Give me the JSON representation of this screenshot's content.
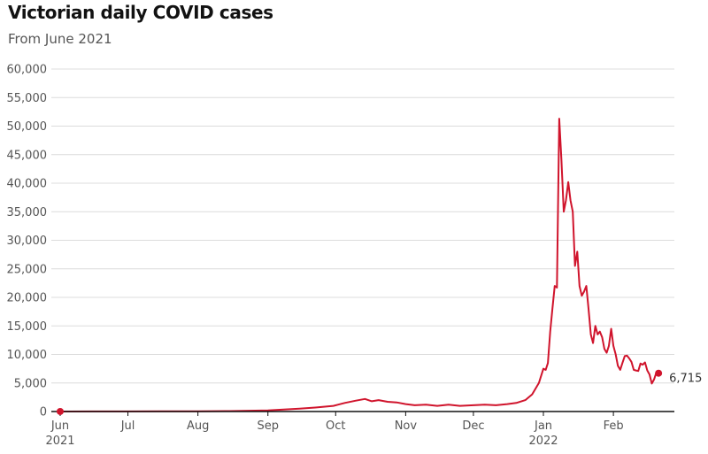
{
  "title": "Victorian daily COVID cases",
  "subtitle": "From June 2021",
  "colors": {
    "line": "#d0142c",
    "grid": "#dcdcdc",
    "axis": "#121212"
  },
  "chart_data": {
    "type": "line",
    "title": "Victorian daily COVID cases",
    "subtitle": "From June 2021",
    "xlabel": "",
    "ylabel": "",
    "ylim": [
      0,
      60000
    ],
    "xlim": [
      "2021-06-01",
      "2022-02-28"
    ],
    "grid": true,
    "y_ticks": [
      {
        "value": 0,
        "label": "0"
      },
      {
        "value": 5000,
        "label": "5,000"
      },
      {
        "value": 10000,
        "label": "10,000"
      },
      {
        "value": 15000,
        "label": "15,000"
      },
      {
        "value": 20000,
        "label": "20,000"
      },
      {
        "value": 25000,
        "label": "25,000"
      },
      {
        "value": 30000,
        "label": "30,000"
      },
      {
        "value": 35000,
        "label": "35,000"
      },
      {
        "value": 40000,
        "label": "40,000"
      },
      {
        "value": 45000,
        "label": "45,000"
      },
      {
        "value": 50000,
        "label": "50,000"
      },
      {
        "value": 55000,
        "label": "55,000"
      },
      {
        "value": 60000,
        "label": "60,000"
      }
    ],
    "x_ticks": [
      {
        "date": "2021-06-01",
        "label": "Jun",
        "sub": "2021"
      },
      {
        "date": "2021-07-01",
        "label": "Jul",
        "sub": ""
      },
      {
        "date": "2021-08-01",
        "label": "Aug",
        "sub": ""
      },
      {
        "date": "2021-09-01",
        "label": "Sep",
        "sub": ""
      },
      {
        "date": "2021-10-01",
        "label": "Oct",
        "sub": ""
      },
      {
        "date": "2021-11-01",
        "label": "Nov",
        "sub": ""
      },
      {
        "date": "2021-12-01",
        "label": "Dec",
        "sub": ""
      },
      {
        "date": "2022-01-01",
        "label": "Jan",
        "sub": "2022"
      },
      {
        "date": "2022-02-01",
        "label": "Feb",
        "sub": ""
      }
    ],
    "series": [
      {
        "points": [
          [
            "2021-06-01",
            5
          ],
          [
            "2021-06-15",
            10
          ],
          [
            "2021-07-01",
            20
          ],
          [
            "2021-07-15",
            40
          ],
          [
            "2021-08-01",
            50
          ],
          [
            "2021-08-15",
            80
          ],
          [
            "2021-09-01",
            200
          ],
          [
            "2021-09-15",
            500
          ],
          [
            "2021-09-22",
            700
          ],
          [
            "2021-09-30",
            1000
          ],
          [
            "2021-10-05",
            1500
          ],
          [
            "2021-10-10",
            1900
          ],
          [
            "2021-10-14",
            2200
          ],
          [
            "2021-10-17",
            1800
          ],
          [
            "2021-10-20",
            2000
          ],
          [
            "2021-10-24",
            1700
          ],
          [
            "2021-10-28",
            1600
          ],
          [
            "2021-11-01",
            1300
          ],
          [
            "2021-11-05",
            1100
          ],
          [
            "2021-11-10",
            1200
          ],
          [
            "2021-11-15",
            1000
          ],
          [
            "2021-11-20",
            1200
          ],
          [
            "2021-11-25",
            1000
          ],
          [
            "2021-12-01",
            1100
          ],
          [
            "2021-12-06",
            1200
          ],
          [
            "2021-12-11",
            1100
          ],
          [
            "2021-12-16",
            1300
          ],
          [
            "2021-12-20",
            1500
          ],
          [
            "2021-12-24",
            2000
          ],
          [
            "2021-12-27",
            3000
          ],
          [
            "2021-12-30",
            5000
          ],
          [
            "2022-01-01",
            7500
          ],
          [
            "2022-01-02",
            7300
          ],
          [
            "2022-01-03",
            8500
          ],
          [
            "2022-01-04",
            14000
          ],
          [
            "2022-01-05",
            18000
          ],
          [
            "2022-01-06",
            22000
          ],
          [
            "2022-01-07",
            21700
          ],
          [
            "2022-01-08",
            51300
          ],
          [
            "2022-01-09",
            44000
          ],
          [
            "2022-01-10",
            35000
          ],
          [
            "2022-01-11",
            37000
          ],
          [
            "2022-01-12",
            40200
          ],
          [
            "2022-01-13",
            37000
          ],
          [
            "2022-01-14",
            35000
          ],
          [
            "2022-01-15",
            25500
          ],
          [
            "2022-01-16",
            28000
          ],
          [
            "2022-01-17",
            22000
          ],
          [
            "2022-01-18",
            20300
          ],
          [
            "2022-01-19",
            21000
          ],
          [
            "2022-01-20",
            22000
          ],
          [
            "2022-01-21",
            18000
          ],
          [
            "2022-01-22",
            13500
          ],
          [
            "2022-01-23",
            12000
          ],
          [
            "2022-01-24",
            15000
          ],
          [
            "2022-01-25",
            13500
          ],
          [
            "2022-01-26",
            14000
          ],
          [
            "2022-01-27",
            13000
          ],
          [
            "2022-01-28",
            11000
          ],
          [
            "2022-01-29",
            10300
          ],
          [
            "2022-01-30",
            11500
          ],
          [
            "2022-01-31",
            14500
          ],
          [
            "2022-02-01",
            11500
          ],
          [
            "2022-02-02",
            10000
          ],
          [
            "2022-02-03",
            8000
          ],
          [
            "2022-02-04",
            7300
          ],
          [
            "2022-02-05",
            8500
          ],
          [
            "2022-02-06",
            9700
          ],
          [
            "2022-02-07",
            9800
          ],
          [
            "2022-02-08",
            9300
          ],
          [
            "2022-02-09",
            8700
          ],
          [
            "2022-02-10",
            7300
          ],
          [
            "2022-02-11",
            7200
          ],
          [
            "2022-02-12",
            7100
          ],
          [
            "2022-02-13",
            8400
          ],
          [
            "2022-02-14",
            8200
          ],
          [
            "2022-02-15",
            8600
          ],
          [
            "2022-02-16",
            7200
          ],
          [
            "2022-02-17",
            6500
          ],
          [
            "2022-02-18",
            4900
          ],
          [
            "2022-02-19",
            5600
          ],
          [
            "2022-02-20",
            6800
          ],
          [
            "2022-02-21",
            6715
          ]
        ]
      }
    ],
    "annotations": {
      "start_point": {
        "date": "2021-06-01",
        "value": 5
      },
      "end_point": {
        "date": "2022-02-21",
        "value": 6715,
        "label": "6,715"
      }
    }
  }
}
